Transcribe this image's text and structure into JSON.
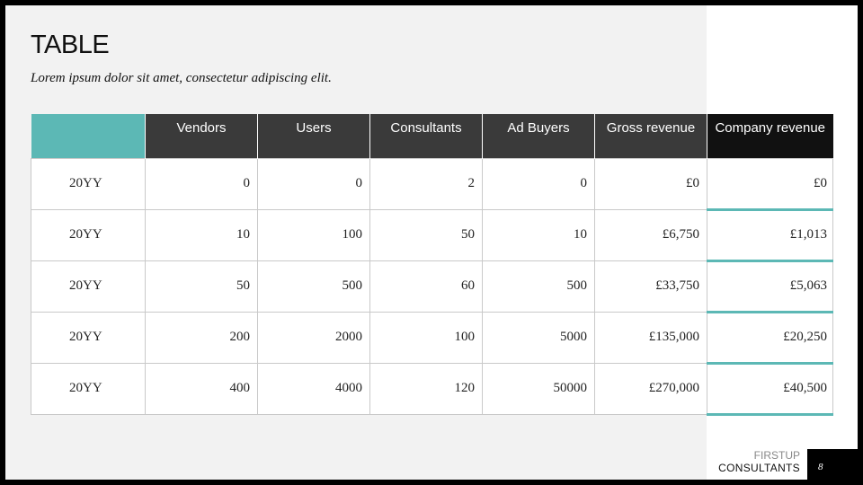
{
  "slide": {
    "title": "TABLE",
    "subtitle": "Lorem ipsum dolor sit amet, consectetur adipiscing elit."
  },
  "colors": {
    "accent": "#5cb8b5",
    "header_dark": "#3a3a3a",
    "header_black": "#111111",
    "panel": "#f2f2f2"
  },
  "table": {
    "headers": [
      "",
      "Vendors",
      "Users",
      "Consultants",
      "Ad Buyers",
      "Gross revenue",
      "Company revenue"
    ],
    "rows": [
      [
        "20YY",
        "0",
        "0",
        "2",
        "0",
        "£0",
        "£0"
      ],
      [
        "20YY",
        "10",
        "100",
        "50",
        "10",
        "£6,750",
        "£1,013"
      ],
      [
        "20YY",
        "50",
        "500",
        "60",
        "500",
        "£33,750",
        "£5,063"
      ],
      [
        "20YY",
        "200",
        "2000",
        "100",
        "5000",
        "£135,000",
        "£20,250"
      ],
      [
        "20YY",
        "400",
        "4000",
        "120",
        "50000",
        "£270,000",
        "£40,500"
      ]
    ]
  },
  "footer": {
    "logo_line1": "FIRSTUP",
    "logo_line2": "CONSULTANTS",
    "page_number": "8"
  }
}
